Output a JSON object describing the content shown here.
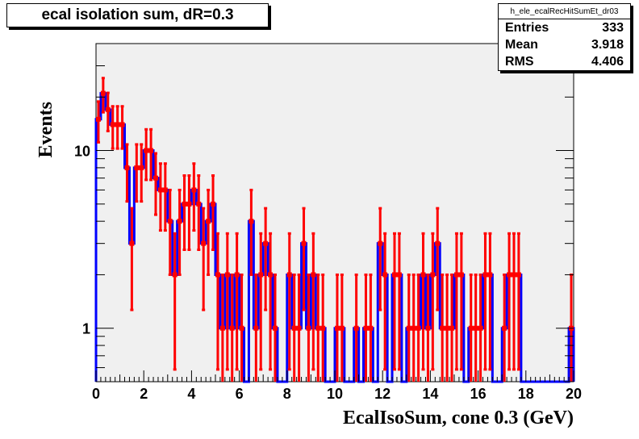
{
  "chart_data": {
    "type": "histogram",
    "title": "ecal isolation sum, dR=0.3",
    "xlabel": "EcalIsoSum, cone 0.3 (GeV)",
    "ylabel": "Events",
    "xlim": [
      0,
      20
    ],
    "ylim": [
      0.5,
      40
    ],
    "y_scale": "log",
    "bin_width": 0.2,
    "x_ticks": [
      0,
      2,
      4,
      6,
      8,
      10,
      12,
      14,
      16,
      18,
      20
    ],
    "x_tick_labels": [
      "0",
      "2",
      "4",
      "6",
      "8",
      "10",
      "12",
      "14",
      "16",
      "18",
      "20"
    ],
    "y_major_ticks": [
      1,
      10
    ],
    "y_major_labels": [
      "1",
      "10"
    ],
    "grid": false,
    "legend": "none",
    "colors": {
      "histogram": "#0000ff",
      "errors": "#ff0000",
      "frame_fill": "#f0f0f0"
    },
    "values": [
      15,
      21,
      17,
      14,
      14,
      14,
      8,
      3,
      8,
      8,
      10,
      10,
      7,
      6,
      6,
      4,
      2,
      4,
      5,
      5,
      6,
      5,
      3,
      4,
      5,
      2,
      1,
      2,
      1,
      2,
      1,
      0,
      4,
      1,
      2,
      3,
      2,
      1,
      0,
      0,
      2,
      1,
      1,
      3,
      1,
      2,
      1,
      1,
      0,
      0,
      1,
      1,
      0,
      0,
      1,
      0,
      1,
      1,
      0,
      3,
      2,
      0,
      2,
      2,
      0,
      1,
      1,
      1,
      2,
      1,
      2,
      3,
      1,
      1,
      1,
      2,
      2,
      0,
      1,
      1,
      1,
      2,
      2,
      0,
      0,
      1,
      2,
      2,
      2,
      0,
      0,
      0,
      0,
      0,
      0,
      0,
      0,
      0,
      0,
      1
    ],
    "stats": {
      "name": "h_ele_ecalRecHitSumEt_dr03",
      "entries_label": "Entries",
      "entries": "333",
      "mean_label": "Mean",
      "mean": "3.918",
      "rms_label": "RMS",
      "rms": "4.406"
    }
  }
}
